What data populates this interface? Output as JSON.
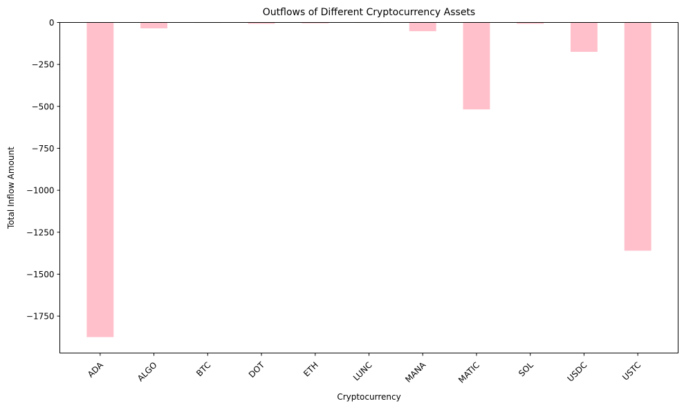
{
  "chart_data": {
    "type": "bar",
    "title": "Outflows of Different Cryptocurrency Assets",
    "xlabel": "Cryptocurrency",
    "ylabel": "Total Inflow Amount",
    "categories": [
      "ADA",
      "ALGO",
      "BTC",
      "DOT",
      "ETH",
      "LUNC",
      "MANA",
      "MATIC",
      "SOL",
      "USDC",
      "USTC"
    ],
    "values": [
      -1875,
      -35,
      -1,
      -8,
      -5,
      -1,
      -52,
      -518,
      -8,
      -175,
      -1360
    ],
    "ylim": [
      -1970,
      0
    ],
    "yticks": [
      0,
      -250,
      -500,
      -750,
      -1000,
      -1250,
      -1500,
      -1750
    ],
    "ytick_labels": [
      "0",
      "−250",
      "−500",
      "−750",
      "−1000",
      "−1250",
      "−1500",
      "−1750"
    ],
    "bar_color": "#ffc0cb",
    "grid": false,
    "legend": "none"
  }
}
